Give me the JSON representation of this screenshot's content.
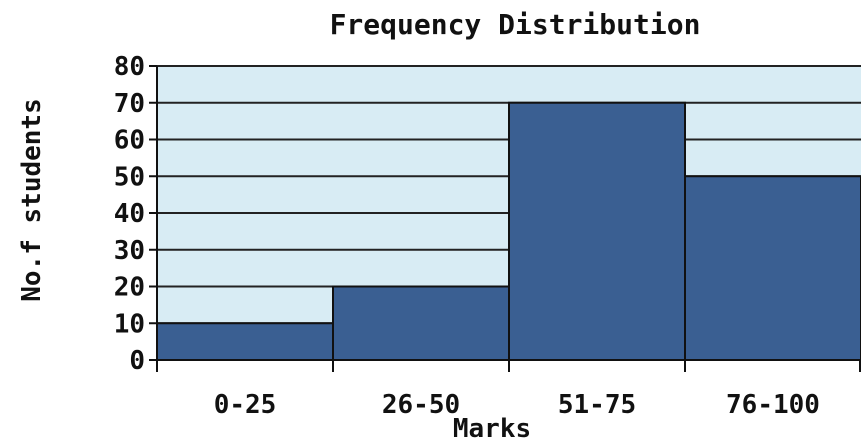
{
  "chart_data": {
    "type": "bar",
    "title": "Frequency Distribution",
    "xlabel": "Marks",
    "ylabel": "No.f students",
    "categories": [
      "0-25",
      "26-50",
      "51-75",
      "76-100"
    ],
    "values": [
      10,
      20,
      70,
      50
    ],
    "ylim": [
      0,
      80
    ],
    "yticks": [
      "0",
      "10",
      "20",
      "30",
      "40",
      "50",
      "60",
      "70",
      "80"
    ],
    "grid": true,
    "colors": {
      "bar": "#3a5f92",
      "bar_edge": "#111111",
      "plot_bg": "#d8ecf4",
      "grid": "#222222"
    }
  }
}
